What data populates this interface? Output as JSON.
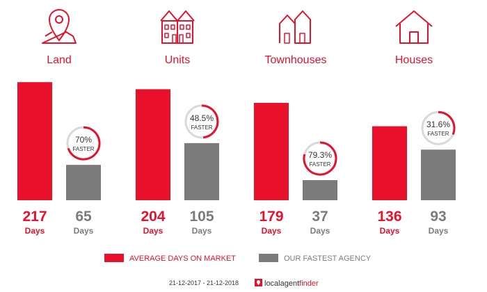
{
  "chart_data": {
    "type": "bar",
    "categories": [
      "Land",
      "Units",
      "Townhouses",
      "Houses"
    ],
    "category_icons": [
      "map-pin-icon",
      "units-building-icon",
      "townhouses-icon",
      "house-icon"
    ],
    "series": [
      {
        "name": "AVERAGE DAYS ON MARKET",
        "values": [
          217,
          204,
          179,
          136
        ]
      },
      {
        "name": "OUR FASTEST AGENCY",
        "values": [
          65,
          105,
          37,
          93
        ]
      }
    ],
    "value_unit": "Days",
    "faster_percent": [
      "70%",
      "48.5%",
      "79.3%",
      "31.6%"
    ],
    "faster_label": "FASTER",
    "faster_ring_fraction": [
      0.7,
      0.485,
      0.793,
      0.316
    ],
    "ylim": [
      0,
      230
    ],
    "grid": false,
    "legend_position": "bottom"
  },
  "colors": {
    "primary": "#e8102b",
    "secondary": "#7b7b7b",
    "ring_track": "#d9d9d9",
    "text_dark": "#333333"
  },
  "footer": {
    "date_range": "21-12-2017 - 21-12-2018",
    "brand_local": "localagent",
    "brand_finder": "finder"
  }
}
